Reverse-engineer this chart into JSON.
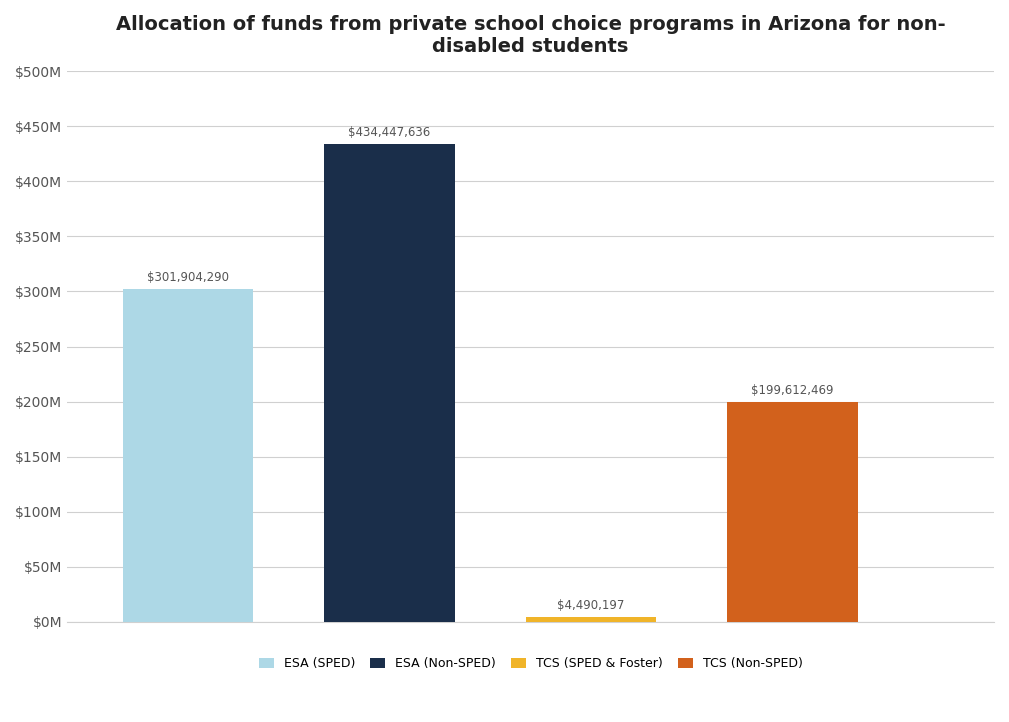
{
  "title": "Allocation of funds from private school choice programs in Arizona for non-\ndisabled students",
  "categories": [
    "ESA (SPED)",
    "ESA (Non-SPED)",
    "TCS (SPED & Foster)",
    "TCS (Non-SPED)"
  ],
  "values": [
    301904290,
    434447636,
    4490197,
    199612469
  ],
  "bar_colors": [
    "#add8e6",
    "#1a2e4a",
    "#f0b429",
    "#d2611c"
  ],
  "bar_labels": [
    "$301,904,290",
    "$434,447,636",
    "$4,490,197",
    "$199,612,469"
  ],
  "legend_labels": [
    "ESA (SPED)",
    "ESA (Non-SPED)",
    "TCS (SPED & Foster)",
    "TCS (Non-SPED)"
  ],
  "ylim": [
    0,
    500000000
  ],
  "yticks": [
    0,
    50000000,
    100000000,
    150000000,
    200000000,
    250000000,
    300000000,
    350000000,
    400000000,
    450000000,
    500000000
  ],
  "ytick_labels": [
    "$0M",
    "$50M",
    "$100M",
    "$150M",
    "$200M",
    "$250M",
    "$300M",
    "$350M",
    "$400M",
    "$450M",
    "$500M"
  ],
  "background_color": "#ffffff",
  "grid_color": "#d0d0d0",
  "title_fontsize": 14,
  "tick_fontsize": 10,
  "legend_fontsize": 9,
  "bar_label_fontsize": 8.5,
  "bar_width": 0.65,
  "x_positions": [
    1,
    2,
    3,
    4
  ],
  "xlim": [
    0.4,
    5.0
  ]
}
